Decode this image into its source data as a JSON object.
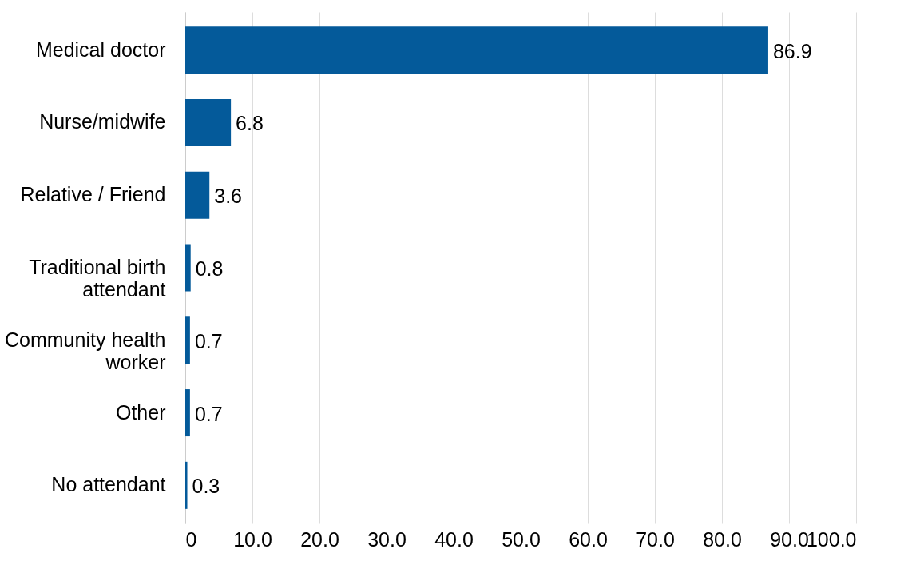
{
  "chart_data": {
    "type": "bar",
    "orientation": "horizontal",
    "categories": [
      "Medical doctor",
      "Nurse/midwife",
      "Relative / Friend",
      "Traditional birth attendant",
      "Community health worker",
      "Other",
      "No attendant"
    ],
    "values": [
      86.9,
      6.8,
      3.6,
      0.8,
      0.7,
      0.7,
      0.3
    ],
    "color": "#045a9a",
    "xlim": [
      0,
      100
    ],
    "xticks": [
      0,
      {
        "value": 10,
        "label": "10.0"
      },
      {
        "value": 20,
        "label": "20.0"
      },
      {
        "value": 30,
        "label": "30.0"
      },
      {
        "value": 40,
        "label": "40.0"
      },
      {
        "value": 50,
        "label": "50.0"
      },
      {
        "value": 60,
        "label": "60.0"
      },
      {
        "value": 70,
        "label": "70.0"
      },
      {
        "value": 80,
        "label": "80.0"
      },
      {
        "value": 90,
        "label": "90.0"
      },
      {
        "value": 100,
        "label": "100.0"
      }
    ],
    "grid": "x",
    "data_labels": true
  }
}
